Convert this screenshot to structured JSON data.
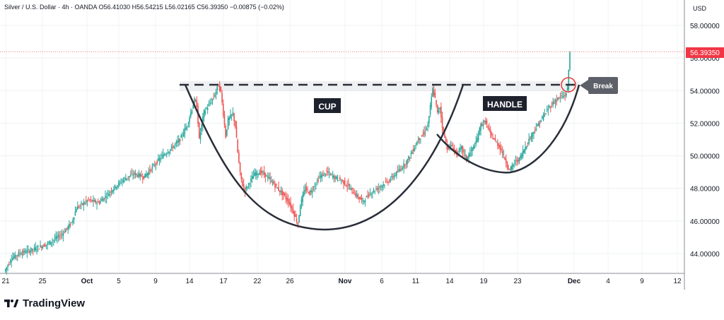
{
  "header": {
    "symbol": "Silver / U.S. Dollar · 4h · OANDA",
    "open": "O56.41030",
    "high": "H56.54215",
    "low": "L56.02165",
    "close": "C56.39350",
    "change": "−0.00875 (−0.02%)"
  },
  "currency": "USD",
  "brand": {
    "name": "TradingView"
  },
  "colors": {
    "up": "#26a69a",
    "down": "#ef5350",
    "pattern": "#2a2e39",
    "price_tag": "#f23645"
  },
  "chart_data": {
    "type": "candlestick",
    "title": "",
    "xlabel": "",
    "ylabel": "",
    "ylim": [
      42.8,
      59.3
    ],
    "x_ticks": [
      "21",
      "25",
      "Oct",
      "5",
      "9",
      "14",
      "17",
      "22",
      "26",
      "Nov",
      "6",
      "11",
      "14",
      "19",
      "23",
      "Dec",
      "4",
      "9",
      "12"
    ],
    "y_ticks": [
      "44.00000",
      "46.00000",
      "48.00000",
      "50.00000",
      "52.00000",
      "54.00000",
      "56.00000",
      "58.00000"
    ],
    "last_price": "56.39350",
    "price_path": [
      [
        0,
        42.9
      ],
      [
        6,
        43.7
      ],
      [
        12,
        44.0
      ],
      [
        22,
        44.2
      ],
      [
        36,
        44.6
      ],
      [
        48,
        45.2
      ],
      [
        56,
        45.9
      ],
      [
        60,
        46.8
      ],
      [
        70,
        47.3
      ],
      [
        78,
        47.1
      ],
      [
        84,
        47.5
      ],
      [
        92,
        48.1
      ],
      [
        100,
        48.6
      ],
      [
        108,
        48.9
      ],
      [
        116,
        48.7
      ],
      [
        122,
        49.2
      ],
      [
        130,
        49.9
      ],
      [
        138,
        50.4
      ],
      [
        146,
        51.0
      ],
      [
        152,
        51.9
      ],
      [
        156,
        52.9
      ],
      [
        158,
        53.4
      ],
      [
        160,
        53.1
      ],
      [
        162,
        51.0
      ],
      [
        164,
        51.9
      ],
      [
        166,
        52.7
      ],
      [
        170,
        53.1
      ],
      [
        174,
        53.6
      ],
      [
        178,
        54.35
      ],
      [
        180,
        53.9
      ],
      [
        182,
        52.6
      ],
      [
        184,
        51.2
      ],
      [
        186,
        52.2
      ],
      [
        190,
        52.6
      ],
      [
        192,
        51.8
      ],
      [
        194,
        50.2
      ],
      [
        196,
        48.9
      ],
      [
        198,
        48.2
      ],
      [
        200,
        47.9
      ],
      [
        204,
        48.4
      ],
      [
        208,
        48.9
      ],
      [
        214,
        49.0
      ],
      [
        220,
        48.6
      ],
      [
        226,
        48.1
      ],
      [
        232,
        47.6
      ],
      [
        236,
        47.2
      ],
      [
        240,
        46.6
      ],
      [
        244,
        45.8
      ],
      [
        246,
        47.0
      ],
      [
        250,
        48.0
      ],
      [
        254,
        47.7
      ],
      [
        258,
        48.2
      ],
      [
        262,
        48.7
      ],
      [
        268,
        49.0
      ],
      [
        274,
        48.7
      ],
      [
        280,
        48.5
      ],
      [
        286,
        48.1
      ],
      [
        292,
        47.6
      ],
      [
        298,
        47.2
      ],
      [
        304,
        47.7
      ],
      [
        312,
        48.1
      ],
      [
        320,
        48.5
      ],
      [
        328,
        49.1
      ],
      [
        334,
        49.6
      ],
      [
        340,
        50.4
      ],
      [
        344,
        51.0
      ],
      [
        348,
        51.3
      ],
      [
        352,
        51.9
      ],
      [
        354,
        53.0
      ],
      [
        356,
        54.1
      ],
      [
        358,
        53.5
      ],
      [
        360,
        52.6
      ],
      [
        362,
        53.0
      ],
      [
        364,
        51.8
      ],
      [
        366,
        51.1
      ],
      [
        368,
        50.5
      ],
      [
        372,
        50.6
      ],
      [
        376,
        50.1
      ],
      [
        380,
        50.5
      ],
      [
        384,
        49.8
      ],
      [
        388,
        50.3
      ],
      [
        392,
        50.8
      ],
      [
        396,
        51.9
      ],
      [
        400,
        52.1
      ],
      [
        404,
        51.3
      ],
      [
        408,
        50.9
      ],
      [
        412,
        50.5
      ],
      [
        416,
        49.8
      ],
      [
        418,
        49.4
      ],
      [
        420,
        49.1
      ],
      [
        424,
        49.6
      ],
      [
        428,
        49.8
      ],
      [
        432,
        50.4
      ],
      [
        436,
        51.0
      ],
      [
        440,
        51.5
      ],
      [
        446,
        52.2
      ],
      [
        452,
        52.9
      ],
      [
        458,
        53.4
      ],
      [
        462,
        53.6
      ],
      [
        466,
        53.7
      ],
      [
        468,
        54.1
      ],
      [
        470,
        56.4
      ]
    ],
    "annotations": [
      {
        "label": "CUP",
        "type": "curve"
      },
      {
        "label": "HANDLE",
        "type": "curve"
      },
      {
        "label": "Break",
        "type": "callout"
      },
      {
        "type": "resistance_line",
        "y": 54.45
      }
    ]
  }
}
